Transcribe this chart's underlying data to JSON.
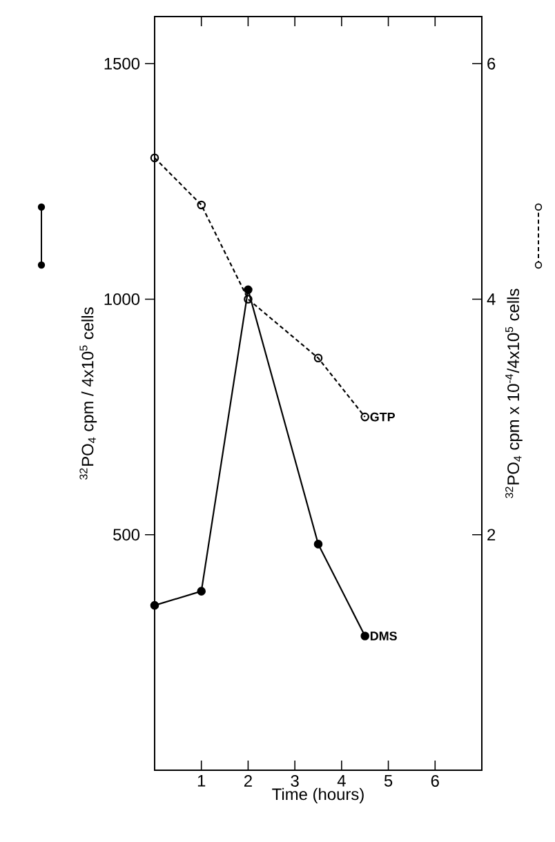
{
  "chart_data": {
    "type": "line",
    "xlabel": "Time (hours)",
    "ylabel": "$^{32}$PO$_{4}$ cpm / 4x10$^{5}$ cells",
    "y2label": "$^{32}$PO$_{4}$ cpm x 10$^{-4}$/4x10$^{5}$ cells",
    "xlim": [
      0,
      7
    ],
    "xticks": [
      {
        "value": 0,
        "label": null
      },
      1,
      2,
      3,
      4,
      5,
      6
    ],
    "ylim": [
      0,
      1600
    ],
    "yticks": [
      500,
      1000,
      1500
    ],
    "y2lim": [
      0,
      6.4
    ],
    "y2ticks": [
      2,
      4,
      6
    ],
    "marker": "circle",
    "series": [
      {
        "name": "DMS",
        "color": "#000000",
        "line_style": "solid",
        "x": [
          0,
          1,
          2,
          3.5,
          4.5
        ],
        "values": [
          350,
          380,
          1020,
          480,
          285
        ]
      },
      {
        "name": "GTP",
        "color": "#000000",
        "line_style": "dashed",
        "axis": "y2",
        "x": [
          0,
          1,
          2,
          3.5,
          4.5
        ],
        "values": [
          5.2,
          4.8,
          4.0,
          3.5,
          3.0
        ]
      }
    ]
  }
}
